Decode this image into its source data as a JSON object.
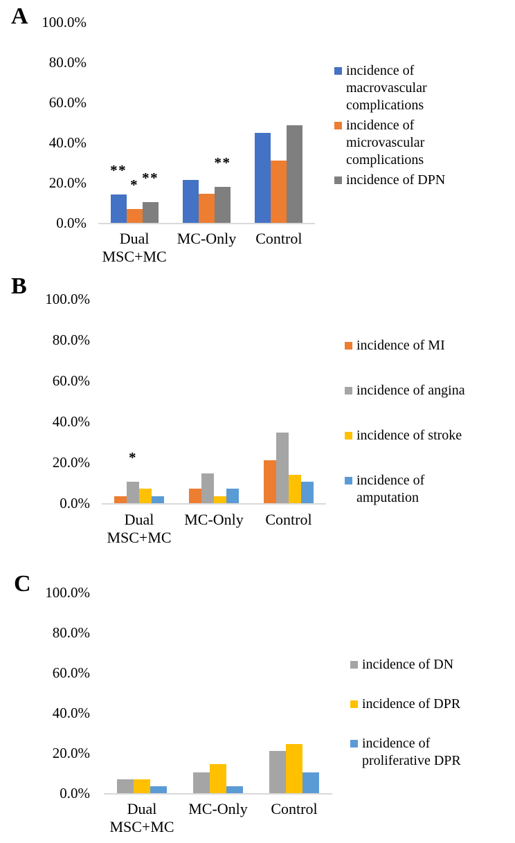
{
  "chart_data": [
    {
      "panel_label": "A",
      "type": "bar",
      "unit": "%",
      "categories": [
        [
          "Dual",
          "MSC+MC"
        ],
        [
          "MC-Only"
        ],
        [
          "Control"
        ]
      ],
      "y_axis": {
        "tick_labels": [
          "100.0%",
          "80.0%",
          "60.0%",
          "40.0%",
          "20.0%",
          "0.0%"
        ],
        "min": 0,
        "max": 100
      },
      "series": [
        {
          "name": "incidence of macrovascular complications",
          "color": "#4472C4",
          "values": [
            14.0,
            21.5,
            45.0
          ]
        },
        {
          "name": "incidence of microvascular complications",
          "color": "#ED7D31",
          "values": [
            7.0,
            14.5,
            31.0
          ]
        },
        {
          "name": "incidence of DPN",
          "color": "#7F7F7F",
          "values": [
            10.5,
            18.0,
            48.5
          ]
        }
      ],
      "annotations": [
        {
          "category": 0,
          "series": 0,
          "text": "**"
        },
        {
          "category": 0,
          "series": 1,
          "text": "*"
        },
        {
          "category": 0,
          "series": 2,
          "text": "**"
        },
        {
          "category": 1,
          "series": 2,
          "text": "**"
        }
      ],
      "legend": {
        "position": "right",
        "items": [
          {
            "series": 0,
            "lines": [
              "incidence of",
              "macrovascular",
              "complications"
            ]
          },
          {
            "series": 1,
            "lines": [
              "incidence of",
              "microvascular",
              "complications"
            ]
          },
          {
            "series": 2,
            "lines": [
              "incidence of DPN"
            ]
          }
        ]
      }
    },
    {
      "panel_label": "B",
      "type": "bar",
      "unit": "%",
      "categories": [
        [
          "Dual",
          "MSC+MC"
        ],
        [
          "MC-Only"
        ],
        [
          "Control"
        ]
      ],
      "y_axis": {
        "tick_labels": [
          "100.0%",
          "80.0%",
          "60.0%",
          "40.0%",
          "20.0%",
          "0.0%"
        ],
        "min": 0,
        "max": 100
      },
      "series": [
        {
          "name": "incidence of MI",
          "color": "#ED7D31",
          "values": [
            3.5,
            7.0,
            21.0
          ]
        },
        {
          "name": "incidence of angina",
          "color": "#A5A5A5",
          "values": [
            10.5,
            14.5,
            34.5
          ]
        },
        {
          "name": "incidence of stroke",
          "color": "#FFC000",
          "values": [
            7.0,
            3.5,
            14.0
          ]
        },
        {
          "name": "incidence of amputation",
          "color": "#5B9BD5",
          "values": [
            3.5,
            7.0,
            10.5
          ]
        }
      ],
      "annotations": [
        {
          "category": 0,
          "series": 1,
          "text": "*"
        }
      ],
      "legend": {
        "position": "right",
        "items": [
          {
            "series": 0,
            "lines": [
              "incidence of MI"
            ]
          },
          {
            "series": 1,
            "lines": [
              "incidence of angina"
            ]
          },
          {
            "series": 2,
            "lines": [
              "incidence of stroke"
            ]
          },
          {
            "series": 3,
            "lines": [
              "incidence of",
              "amputation"
            ]
          }
        ]
      }
    },
    {
      "panel_label": "C",
      "type": "bar",
      "unit": "%",
      "categories": [
        [
          "Dual",
          "MSC+MC"
        ],
        [
          "MC-Only"
        ],
        [
          "Control"
        ]
      ],
      "y_axis": {
        "tick_labels": [
          "100.0%",
          "80.0%",
          "60.0%",
          "40.0%",
          "20.0%",
          "0.0%"
        ],
        "min": 0,
        "max": 100
      },
      "series": [
        {
          "name": "incidence of DN",
          "color": "#A5A5A5",
          "values": [
            7.0,
            10.5,
            21.0
          ]
        },
        {
          "name": "incidence of DPR",
          "color": "#FFC000",
          "values": [
            7.0,
            14.5,
            24.5
          ]
        },
        {
          "name": "incidence of proliferative DPR",
          "color": "#5B9BD5",
          "values": [
            3.5,
            3.5,
            10.5
          ]
        }
      ],
      "annotations": [],
      "legend": {
        "position": "right",
        "items": [
          {
            "series": 0,
            "lines": [
              "incidence of DN"
            ]
          },
          {
            "series": 1,
            "lines": [
              "incidence of DPR"
            ]
          },
          {
            "series": 2,
            "lines": [
              "incidence of",
              "proliferative DPR"
            ]
          }
        ]
      }
    }
  ]
}
